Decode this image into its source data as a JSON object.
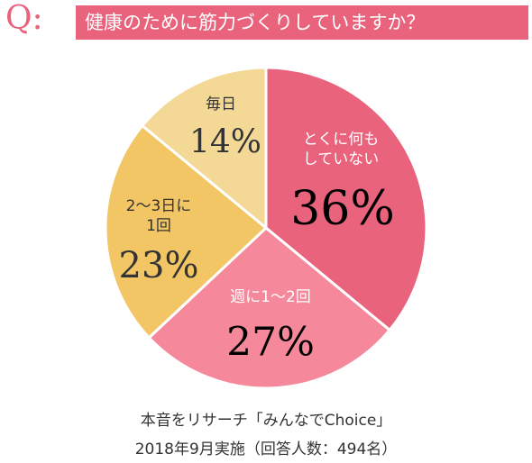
{
  "header": {
    "label": "Q:",
    "title": "健康のために筋力づくりしていますか？"
  },
  "chart_data": {
    "type": "pie",
    "categories": [
      "とくに何も\nしていない",
      "週に1〜2回",
      "2〜3日に\n1回",
      "毎日"
    ],
    "values": [
      36,
      27,
      23,
      14
    ],
    "value_labels": [
      "36%",
      "27%",
      "23%",
      "14%"
    ],
    "colors": [
      "#e9637d",
      "#f5899b",
      "#f2c664",
      "#f4d896"
    ]
  },
  "footer": {
    "lines": [
      "本音をリサーチ「みんなでChoice」",
      "2018年9月実施（回答人数：494名）"
    ]
  }
}
